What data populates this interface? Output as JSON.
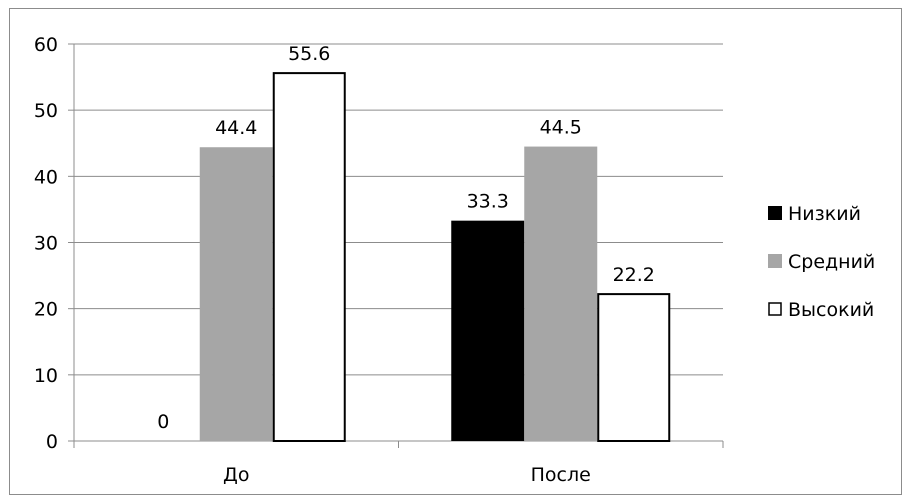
{
  "chart_data": {
    "type": "bar",
    "categories": [
      "До",
      "После"
    ],
    "series": [
      {
        "name": "Низкий",
        "values": [
          0,
          33.3
        ],
        "color": "#000000",
        "labels": [
          "0",
          "33.3"
        ]
      },
      {
        "name": "Средний",
        "values": [
          44.4,
          44.5
        ],
        "color": "#a6a6a6",
        "labels": [
          "44.4",
          "44.5"
        ]
      },
      {
        "name": "Высокий",
        "values": [
          55.6,
          22.2
        ],
        "color": "#ffffff",
        "labels": [
          "55.6",
          "22.2"
        ]
      }
    ],
    "yticks": [
      "0",
      "10",
      "20",
      "30",
      "40",
      "50",
      "60"
    ],
    "ylim": [
      0,
      60
    ],
    "grid": true,
    "legend": "right"
  }
}
